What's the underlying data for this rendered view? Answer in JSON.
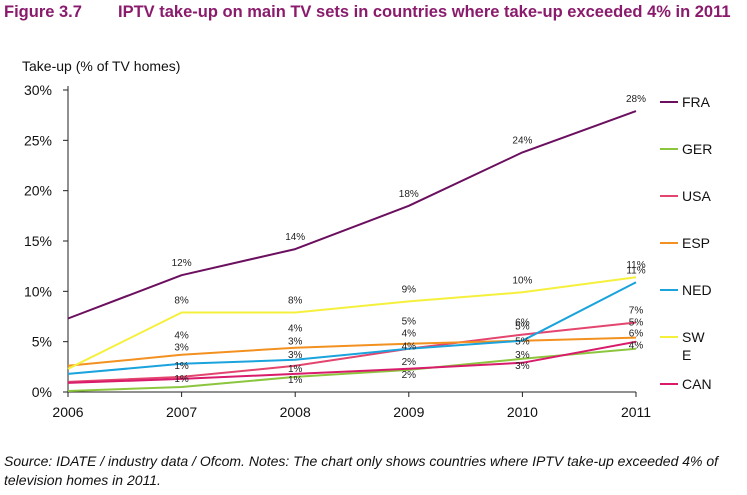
{
  "figure": {
    "number": "Figure 3.7",
    "title": "IPTV take-up on main TV sets in countries where take-up exceeded 4% in 2011"
  },
  "source_note": "Source: IDATE / industry data / Ofcom. Notes: The chart only shows countries where IPTV take-up exceeded 4% of television homes in 2011.",
  "chart_data": {
    "type": "line",
    "ylabel": "Take-up (% of TV homes)",
    "xlabel": "",
    "categories": [
      "2006",
      "2007",
      "2008",
      "2009",
      "2010",
      "2011"
    ],
    "ylim": [
      0,
      30
    ],
    "yticks": [
      0,
      5,
      10,
      15,
      20,
      25,
      30
    ],
    "ytick_labels": [
      "0%",
      "5%",
      "10%",
      "15%",
      "20%",
      "25%",
      "30%"
    ],
    "grid": false,
    "legend_position": "right",
    "series": [
      {
        "name": "FRA",
        "legend_lines": [
          "FRA"
        ],
        "color": "#6b0f5f",
        "values": [
          7.3,
          11.6,
          14.2,
          18.5,
          23.8,
          27.9
        ],
        "labels": [
          "",
          "12%",
          "14%",
          "18%",
          "24%",
          "28%"
        ]
      },
      {
        "name": "GER",
        "legend_lines": [
          "GER"
        ],
        "color": "#8cc63f",
        "values": [
          0.1,
          0.5,
          1.5,
          2.2,
          3.3,
          4.3
        ],
        "labels": [
          "",
          "",
          "",
          "",
          "",
          ""
        ]
      },
      {
        "name": "USA",
        "legend_lines": [
          "USA"
        ],
        "color": "#e3456e",
        "values": [
          1.0,
          1.5,
          2.6,
          4.3,
          5.7,
          6.9
        ],
        "labels": [
          "",
          "",
          "",
          "",
          "6%",
          "7%"
        ]
      },
      {
        "name": "ESP",
        "legend_lines": [
          "ESP"
        ],
        "color": "#f39120",
        "values": [
          2.6,
          3.7,
          4.4,
          4.8,
          5.1,
          5.4
        ],
        "labels": [
          "",
          "",
          "",
          "",
          "",
          ""
        ]
      },
      {
        "name": "NED",
        "legend_lines": [
          "NED"
        ],
        "color": "#1aa3dd",
        "values": [
          1.8,
          2.8,
          3.2,
          4.3,
          5.1,
          10.9
        ],
        "labels": [
          "",
          "",
          "",
          "",
          "",
          "11%"
        ]
      },
      {
        "name": "SWE",
        "legend_lines": [
          "SW",
          "E"
        ],
        "color": "#f5f03c",
        "values": [
          2.3,
          7.9,
          7.9,
          9.0,
          9.9,
          11.4
        ],
        "labels": [
          "",
          "8%",
          "8%",
          "9%",
          "10%",
          "11%"
        ]
      },
      {
        "name": "CAN",
        "legend_lines": [
          "CAN"
        ],
        "color": "#d81b6a",
        "values": [
          0.9,
          1.3,
          1.8,
          2.3,
          2.9,
          5.0
        ],
        "labels": [
          "",
          "",
          "",
          "",
          "",
          ""
        ]
      }
    ],
    "annotations": [
      {
        "text": "4%",
        "x": "2007",
        "y": 5.6
      },
      {
        "text": "3%",
        "x": "2007",
        "y": 4.4
      },
      {
        "text": "1%",
        "x": "2007",
        "y": 2.6
      },
      {
        "text": "1%",
        "x": "2007",
        "y": 1.3
      },
      {
        "text": "4%",
        "x": "2008",
        "y": 6.3
      },
      {
        "text": "3%",
        "x": "2008",
        "y": 5.0
      },
      {
        "text": "3%",
        "x": "2008",
        "y": 3.7
      },
      {
        "text": "1%",
        "x": "2008",
        "y": 2.3
      },
      {
        "text": "1%",
        "x": "2008",
        "y": 1.2
      },
      {
        "text": "5%",
        "x": "2009",
        "y": 7.0
      },
      {
        "text": "4%",
        "x": "2009",
        "y": 5.8
      },
      {
        "text": "4%",
        "x": "2009",
        "y": 4.5
      },
      {
        "text": "2%",
        "x": "2009",
        "y": 3.0
      },
      {
        "text": "2%",
        "x": "2009",
        "y": 1.7
      },
      {
        "text": "5%",
        "x": "2010",
        "y": 6.5
      },
      {
        "text": "5%",
        "x": "2010",
        "y": 5.0
      },
      {
        "text": "3%",
        "x": "2010",
        "y": 3.7
      },
      {
        "text": "3%",
        "x": "2010",
        "y": 2.6
      },
      {
        "text": "5%",
        "x": "2011",
        "y": 6.9
      },
      {
        "text": "6%",
        "x": "2011",
        "y": 5.8
      },
      {
        "text": "4%",
        "x": "2011",
        "y": 4.6
      }
    ]
  }
}
